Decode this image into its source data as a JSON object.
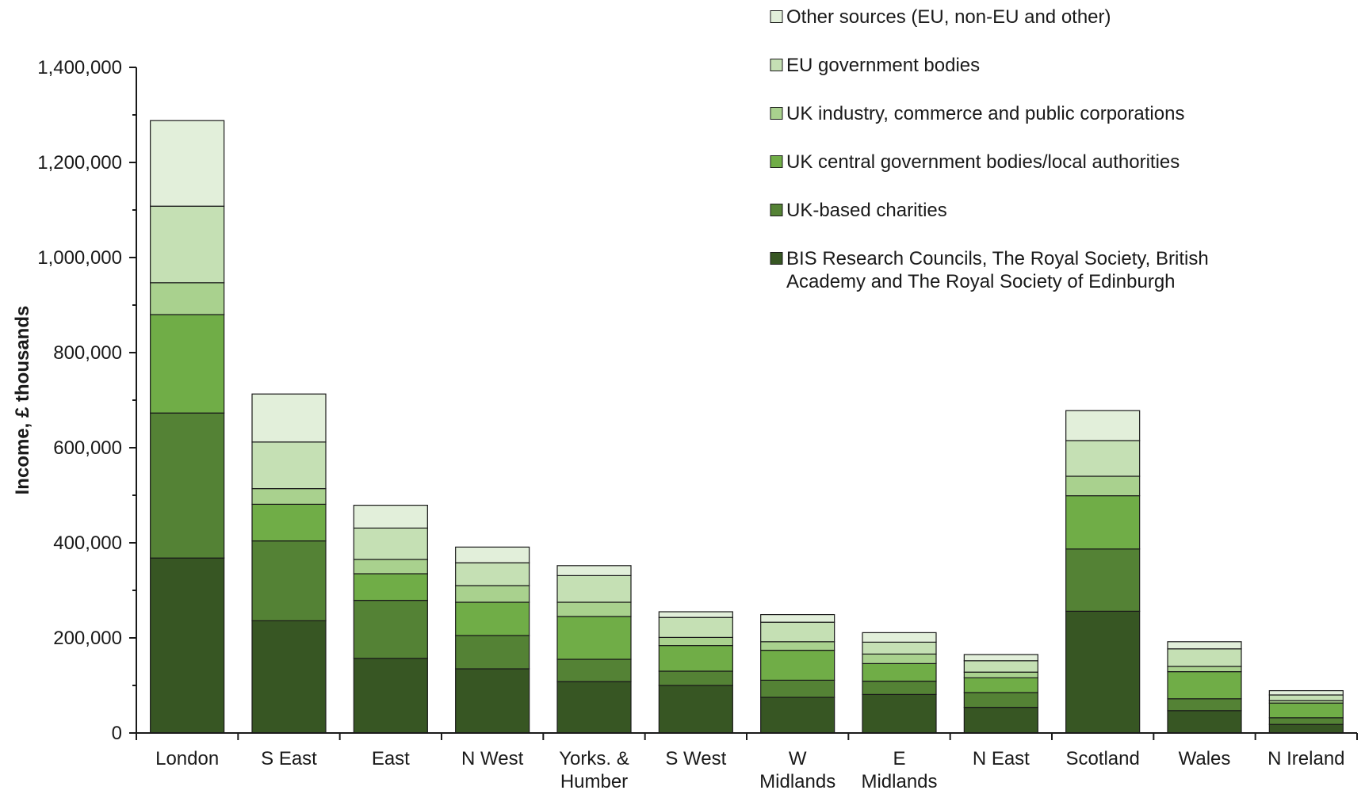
{
  "chart_data": {
    "type": "bar",
    "stacked": true,
    "title": "",
    "xlabel": "",
    "ylabel": "Income, £ thousands",
    "ylim": [
      0,
      1400000
    ],
    "yticks": [
      "0",
      "200,000",
      "400,000",
      "600,000",
      "800,000",
      "1,000,000",
      "1,200,000",
      "1,400,000"
    ],
    "ytick_values": [
      0,
      200000,
      400000,
      600000,
      800000,
      1000000,
      1200000,
      1400000
    ],
    "grid": false,
    "legend_position": "top-right",
    "categories": [
      [
        "London"
      ],
      [
        "S East"
      ],
      [
        "East"
      ],
      [
        "N West"
      ],
      [
        "Yorks. &",
        "Humber"
      ],
      [
        "S West"
      ],
      [
        "W",
        "Midlands"
      ],
      [
        "E",
        "Midlands"
      ],
      [
        "N East"
      ],
      [
        "Scotland"
      ],
      [
        "Wales"
      ],
      [
        "N Ireland"
      ]
    ],
    "series": [
      {
        "name": [
          "BIS Research Councils, The Royal Society, British",
          "Academy and The Royal Society of Edinburgh"
        ],
        "color": "#375623",
        "values": [
          368000,
          236000,
          157000,
          135000,
          108000,
          100000,
          75000,
          81000,
          54000,
          256000,
          47000,
          18000
        ]
      },
      {
        "name": [
          "UK-based charities"
        ],
        "color": "#548235",
        "values": [
          305000,
          168000,
          122000,
          70000,
          47000,
          30000,
          36000,
          28000,
          31000,
          131000,
          25000,
          14000
        ]
      },
      {
        "name": [
          "UK central government bodies/local authorities"
        ],
        "color": "#70AD47",
        "values": [
          207000,
          77000,
          56000,
          70000,
          90000,
          54000,
          63000,
          37000,
          31000,
          112000,
          57000,
          31000
        ]
      },
      {
        "name": [
          "UK industry, commerce and public corporations"
        ],
        "color": "#A9D18E",
        "values": [
          67000,
          33000,
          30000,
          35000,
          30000,
          17000,
          18000,
          20000,
          12000,
          41000,
          11000,
          5000
        ]
      },
      {
        "name": [
          "EU government bodies"
        ],
        "color": "#C5E0B4",
        "values": [
          161000,
          98000,
          66000,
          48000,
          56000,
          42000,
          41000,
          25000,
          24000,
          75000,
          37000,
          12000
        ]
      },
      {
        "name": [
          "Other sources (EU, non-EU and other)"
        ],
        "color": "#E2EFDA",
        "values": [
          180000,
          101000,
          48000,
          33000,
          21000,
          12000,
          16000,
          20000,
          13000,
          63000,
          15000,
          9000
        ]
      }
    ]
  }
}
